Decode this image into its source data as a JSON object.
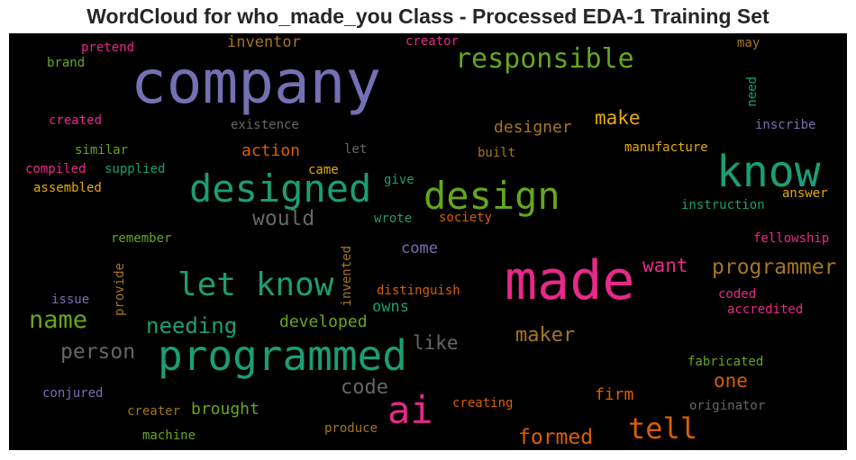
{
  "chart_data": {
    "type": "wordcloud",
    "title": "WordCloud for who_made_you Class - Processed EDA-1 Training Set",
    "background": "#000000",
    "palette": {
      "purple": "#7570b3",
      "teal": "#1b9e77",
      "green": "#66a61e",
      "pink": "#e7298a",
      "orange": "#d95f02",
      "gold": "#e6ab02",
      "brown": "#a6761d",
      "gray": "#666666"
    },
    "words": [
      {
        "text": "company",
        "color": "purple"
      },
      {
        "text": "made",
        "color": "pink"
      },
      {
        "text": "programmed",
        "color": "teal"
      },
      {
        "text": "designed",
        "color": "teal"
      },
      {
        "text": "know",
        "color": "teal"
      },
      {
        "text": "design",
        "color": "green"
      },
      {
        "text": "let know",
        "color": "teal"
      },
      {
        "text": "responsible",
        "color": "green"
      },
      {
        "text": "ai",
        "color": "pink"
      },
      {
        "text": "tell",
        "color": "orange"
      },
      {
        "text": "name",
        "color": "green"
      },
      {
        "text": "programmer",
        "color": "brown"
      },
      {
        "text": "needing",
        "color": "teal"
      },
      {
        "text": "person",
        "color": "gray"
      },
      {
        "text": "would",
        "color": "gray"
      },
      {
        "text": "formed",
        "color": "orange"
      },
      {
        "text": "maker",
        "color": "brown"
      },
      {
        "text": "code",
        "color": "gray"
      },
      {
        "text": "like",
        "color": "gray"
      },
      {
        "text": "make",
        "color": "gold"
      },
      {
        "text": "want",
        "color": "pink"
      },
      {
        "text": "one",
        "color": "orange"
      },
      {
        "text": "developed",
        "color": "green"
      },
      {
        "text": "designer",
        "color": "brown"
      },
      {
        "text": "brought",
        "color": "green"
      },
      {
        "text": "firm",
        "color": "orange"
      },
      {
        "text": "action",
        "color": "orange"
      },
      {
        "text": "inventor",
        "color": "brown"
      },
      {
        "text": "owns",
        "color": "teal"
      },
      {
        "text": "come",
        "color": "purple"
      },
      {
        "text": "pretend",
        "color": "pink"
      },
      {
        "text": "brand",
        "color": "green"
      },
      {
        "text": "creator",
        "color": "pink"
      },
      {
        "text": "may",
        "color": "brown"
      },
      {
        "text": "need",
        "color": "teal"
      },
      {
        "text": "created",
        "color": "pink"
      },
      {
        "text": "existence",
        "color": "gray"
      },
      {
        "text": "inscribe",
        "color": "purple"
      },
      {
        "text": "similar",
        "color": "green"
      },
      {
        "text": "let",
        "color": "gray"
      },
      {
        "text": "built",
        "color": "brown"
      },
      {
        "text": "manufacture",
        "color": "gold"
      },
      {
        "text": "compiled",
        "color": "pink"
      },
      {
        "text": "supplied",
        "color": "teal"
      },
      {
        "text": "came",
        "color": "gold"
      },
      {
        "text": "assembled",
        "color": "gold"
      },
      {
        "text": "give",
        "color": "teal"
      },
      {
        "text": "answer",
        "color": "gold"
      },
      {
        "text": "instruction",
        "color": "teal"
      },
      {
        "text": "wrote",
        "color": "teal"
      },
      {
        "text": "society",
        "color": "orange"
      },
      {
        "text": "remember",
        "color": "green"
      },
      {
        "text": "invented",
        "color": "brown"
      },
      {
        "text": "provide",
        "color": "brown"
      },
      {
        "text": "fellowship",
        "color": "pink"
      },
      {
        "text": "distinguish",
        "color": "orange"
      },
      {
        "text": "issue",
        "color": "purple"
      },
      {
        "text": "coded",
        "color": "pink"
      },
      {
        "text": "accredited",
        "color": "pink"
      },
      {
        "text": "fabricated",
        "color": "green"
      },
      {
        "text": "conjured",
        "color": "purple"
      },
      {
        "text": "creating",
        "color": "orange"
      },
      {
        "text": "originator",
        "color": "gray"
      },
      {
        "text": "creater",
        "color": "brown"
      },
      {
        "text": "machine",
        "color": "green"
      },
      {
        "text": "produce",
        "color": "brown"
      }
    ]
  }
}
